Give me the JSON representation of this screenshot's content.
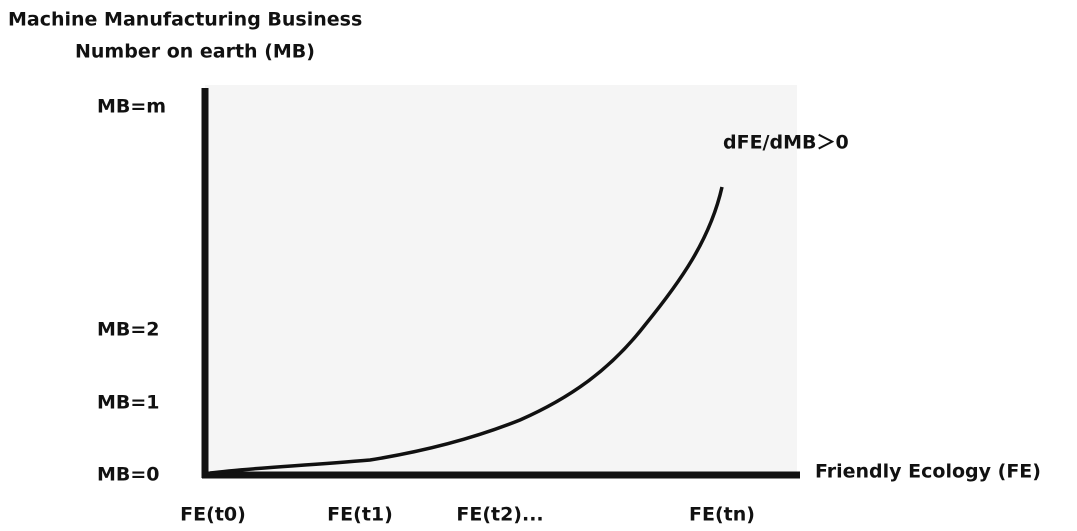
{
  "y_axis_title": [
    "Machine Manufacturing Business",
    "Number on earth (MB)"
  ],
  "y_labels": [
    "MB=m",
    "MB=2",
    "MB=1",
    "MB=0"
  ],
  "x_labels": [
    "FE(t0)",
    "FE(t1)",
    "FE(t2)...",
    "FE(tn)"
  ],
  "x_axis_title": "Friendly Ecology (FE)",
  "annotation": "dFE/dMB＞0"
}
